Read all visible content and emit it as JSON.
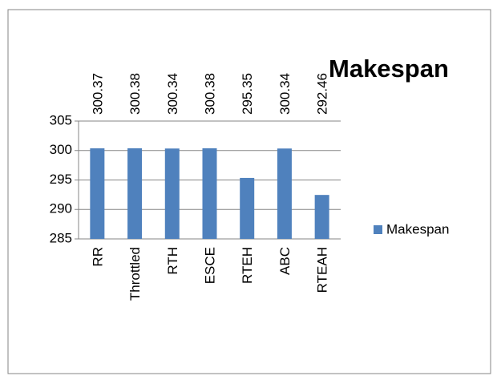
{
  "chart_data": {
    "type": "bar",
    "title": "Makespan",
    "categories": [
      "RR",
      "Throttled",
      "RTH",
      "ESCE",
      "RTEH",
      "ABC",
      "RTEAH"
    ],
    "series": [
      {
        "name": "Makespan",
        "color": "#4f81bd",
        "values": [
          300.37,
          300.38,
          300.34,
          300.38,
          295.35,
          300.34,
          292.46
        ]
      }
    ],
    "ylim": [
      285,
      305
    ],
    "yticks": [
      285,
      290,
      295,
      300,
      305
    ],
    "grid": true,
    "legend": "right"
  }
}
